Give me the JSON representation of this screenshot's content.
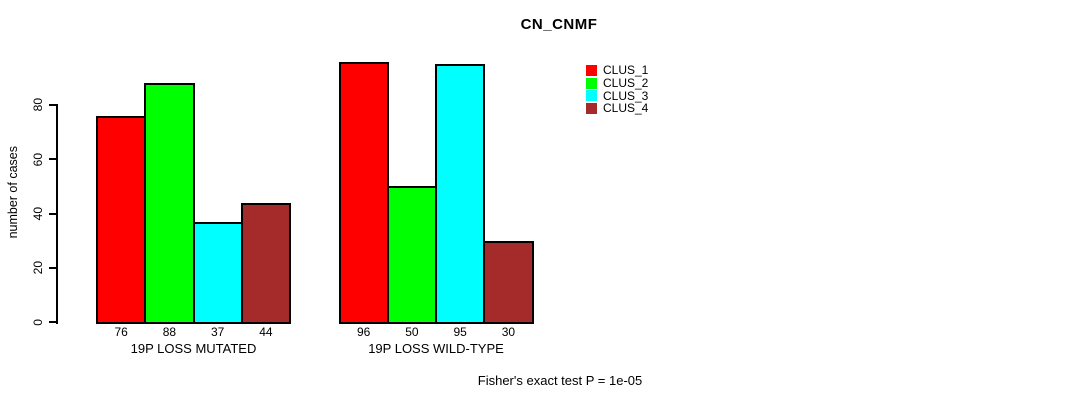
{
  "chart_data": {
    "type": "bar",
    "title": "CN_CNMF",
    "ylabel": "number of cases",
    "xlabel": "",
    "categories": [
      "19P LOSS MUTATED",
      "19P LOSS WILD-TYPE"
    ],
    "series": [
      {
        "name": "CLUS_1",
        "color": "#ff0000",
        "values": [
          76,
          96
        ]
      },
      {
        "name": "CLUS_2",
        "color": "#00ff00",
        "values": [
          88,
          50
        ]
      },
      {
        "name": "CLUS_3",
        "color": "#00ffff",
        "values": [
          37,
          95
        ]
      },
      {
        "name": "CLUS_4",
        "color": "#a52a2a",
        "values": [
          44,
          30
        ]
      }
    ],
    "yticks": [
      0,
      20,
      40,
      60,
      80
    ],
    "ylim": [
      0,
      96
    ],
    "grid": false,
    "show_values_under_bars": true,
    "legend_position": "top-right",
    "annotation": "Fisher's exact test P = 1e-05"
  },
  "colors": {
    "background": "#ffffff",
    "bar_border": "#000000",
    "text": "#000000"
  }
}
